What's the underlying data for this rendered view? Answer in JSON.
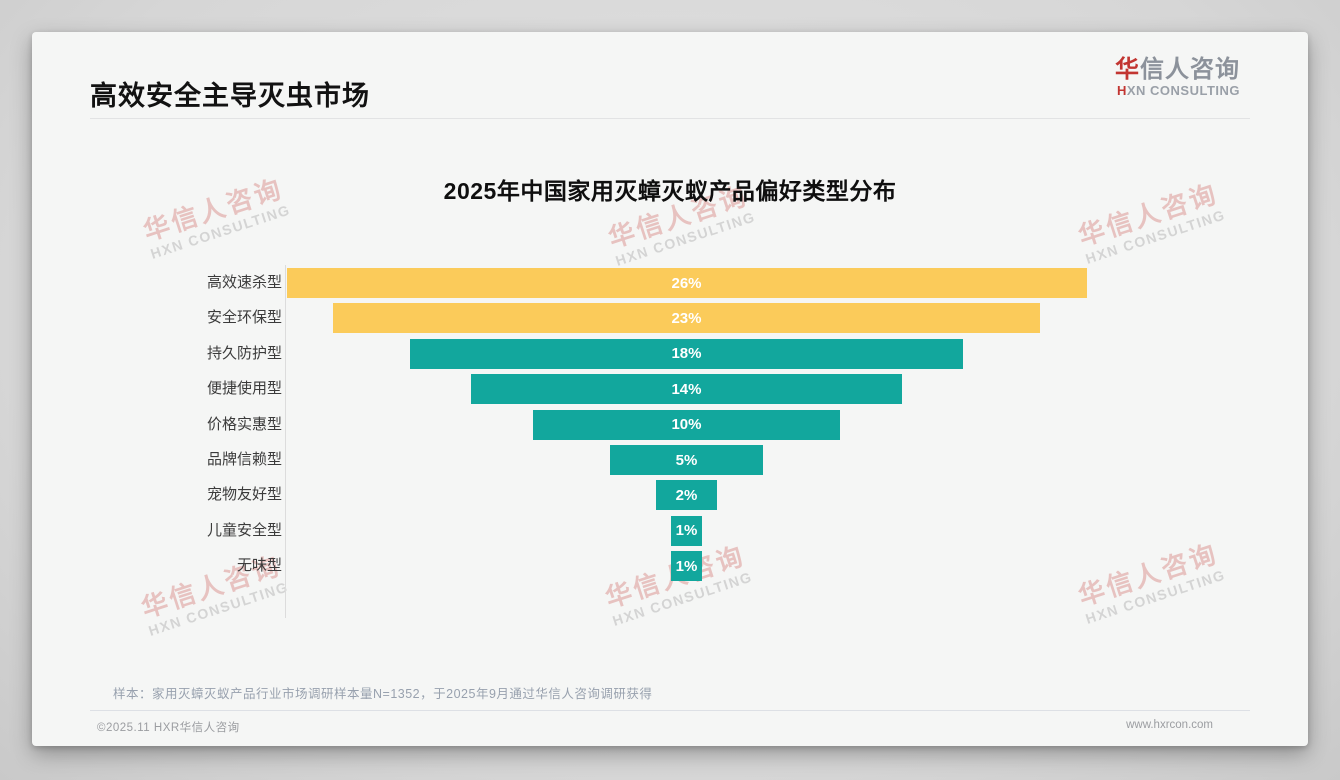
{
  "page_title": "高效安全主导灭虫市场",
  "logo": {
    "zh_red": "华",
    "zh_rest": "信人咨询",
    "en_red": "H",
    "en_rest": "XN CONSULTING"
  },
  "watermark": {
    "line1": "华信人咨询",
    "line2": "HXN CONSULTING"
  },
  "chart_data": {
    "type": "bar",
    "subtype": "horizontal-centered-funnel",
    "title": "2025年中国家用灭蟑灭蚁产品偏好类型分布",
    "categories": [
      "高效速杀型",
      "安全环保型",
      "持久防护型",
      "便捷使用型",
      "价格实惠型",
      "品牌信赖型",
      "宠物友好型",
      "儿童安全型",
      "无味型"
    ],
    "values": [
      26,
      23,
      18,
      14,
      10,
      5,
      2,
      1,
      1
    ],
    "value_labels": [
      "26%",
      "23%",
      "18%",
      "14%",
      "10%",
      "5%",
      "2%",
      "1%",
      "1%"
    ],
    "unit": "%",
    "colors": [
      "#fbcb5a",
      "#fbcb5a",
      "#12a79d",
      "#12a79d",
      "#12a79d",
      "#12a79d",
      "#12a79d",
      "#12a79d",
      "#12a79d"
    ],
    "value_label_color": "#ffffff",
    "legend": "none",
    "grid": "off",
    "xlim": [
      0,
      26
    ]
  },
  "footer": {
    "sample_note": "样本：家用灭蟑灭蚁产品行业市场调研样本量N=1352，于2025年9月通过华信人咨询调研获得",
    "copyright": "©2025.11 HXR华信人咨询",
    "website": "www.hxrcon.com"
  },
  "colors": {
    "accent_red": "#c23531",
    "bar_yellow": "#fbcb5a",
    "bar_teal": "#12a79d",
    "card_bg": "#f5f6f5",
    "muted_text": "#98a1ae"
  }
}
